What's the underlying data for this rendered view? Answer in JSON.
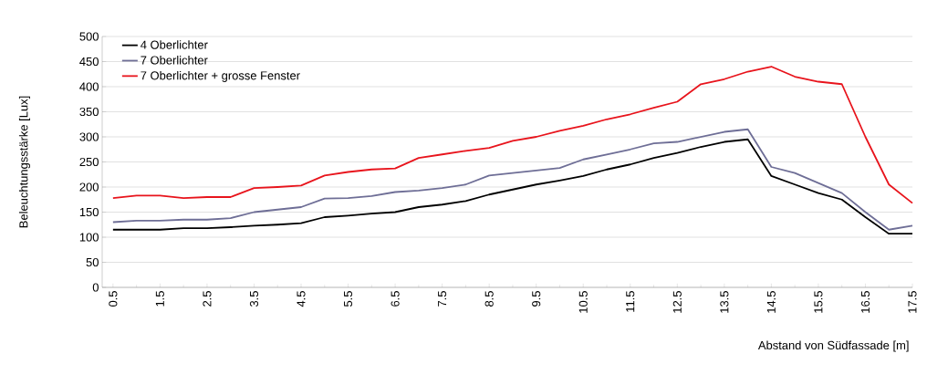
{
  "chart_data": {
    "type": "line",
    "xlabel": "Abstand von Südfassade [m]",
    "ylabel": "Beleuchtungsstärke [Lux]",
    "x": [
      0.5,
      1,
      1.5,
      2,
      2.5,
      3,
      3.5,
      4,
      4.5,
      5,
      5.5,
      6,
      6.5,
      7,
      7.5,
      8,
      8.5,
      9,
      9.5,
      10,
      10.5,
      11,
      11.5,
      12,
      12.5,
      13,
      13.5,
      14,
      14.5,
      15,
      15.5,
      16,
      16.5,
      17,
      17.5
    ],
    "series": [
      {
        "name": "4 Oberlichter",
        "color": "#000000",
        "values": [
          115,
          115,
          115,
          118,
          118,
          120,
          123,
          125,
          128,
          140,
          143,
          147,
          150,
          160,
          165,
          172,
          185,
          195,
          205,
          213,
          222,
          235,
          245,
          258,
          268,
          280,
          290,
          295,
          222,
          205,
          188,
          175,
          140,
          107,
          107
        ]
      },
      {
        "name": "7 Oberlichter",
        "color": "#6e6e96",
        "values": [
          130,
          133,
          133,
          135,
          135,
          138,
          150,
          155,
          160,
          177,
          178,
          182,
          190,
          193,
          198,
          205,
          223,
          228,
          233,
          238,
          255,
          265,
          275,
          287,
          290,
          300,
          310,
          315,
          240,
          228,
          208,
          188,
          150,
          115,
          123
        ]
      },
      {
        "name": "7 Oberlichter + grosse Fenster",
        "color": "#e8141c",
        "values": [
          178,
          183,
          183,
          178,
          180,
          180,
          198,
          200,
          203,
          223,
          230,
          235,
          237,
          258,
          265,
          272,
          278,
          292,
          300,
          312,
          322,
          335,
          345,
          358,
          370,
          405,
          415,
          430,
          440,
          420,
          410,
          405,
          300,
          205,
          168
        ]
      }
    ],
    "xlim": [
      0.27,
      17.5
    ],
    "xticks": [
      0.5,
      1.5,
      2.5,
      3.5,
      4.5,
      5.5,
      6.5,
      7.5,
      8.5,
      9.5,
      10.5,
      11.5,
      12.5,
      13.5,
      14.5,
      15.5,
      16.5,
      17.5
    ],
    "ylim": [
      0,
      500
    ],
    "yticks": [
      0,
      50,
      100,
      150,
      200,
      250,
      300,
      350,
      400,
      450,
      500
    ],
    "grid": "y",
    "legend": "top left",
    "marker": "none",
    "line_style": "solid"
  }
}
